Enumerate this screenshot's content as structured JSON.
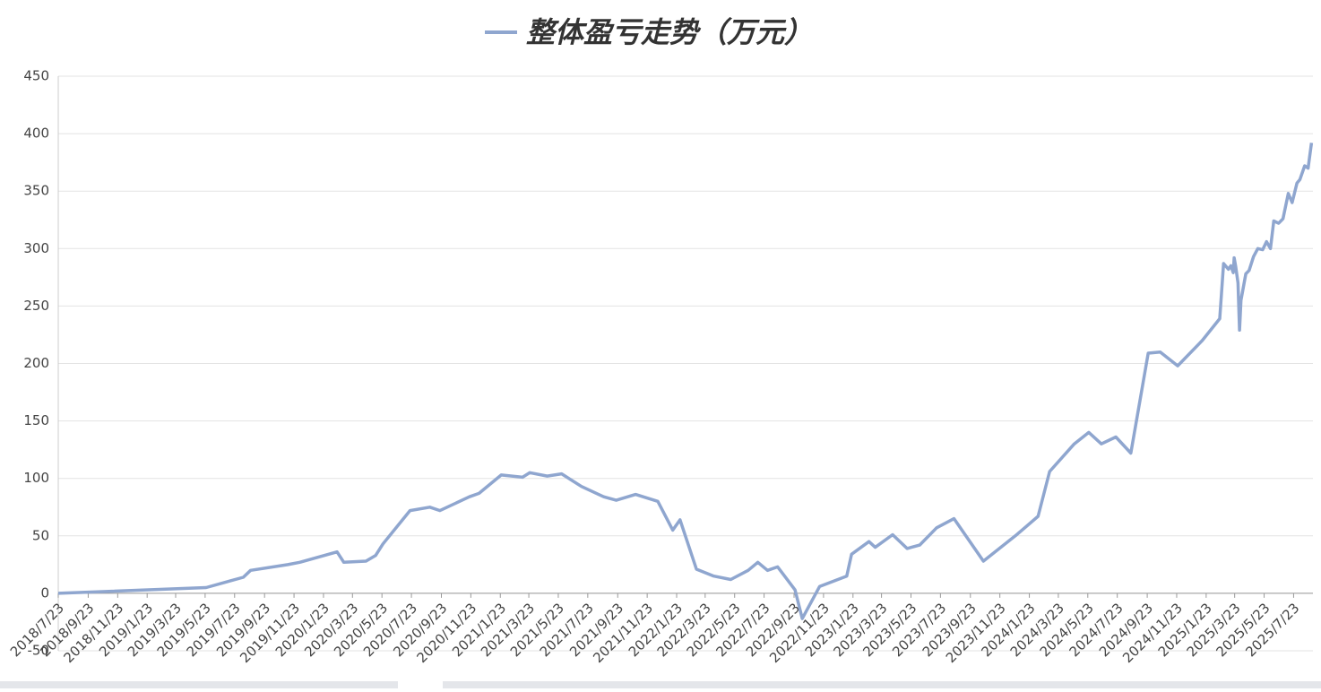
{
  "chart_data": {
    "type": "line",
    "title": "整体盈亏走势（万元）",
    "series": [
      {
        "name": "整体盈亏走势（万元）",
        "color": "#8fa6cf",
        "x": [
          "2018/7/23",
          "2019/5/25",
          "2019/8/10",
          "2019/8/25",
          "2019/11/10",
          "2019/12/5",
          "2020/2/20",
          "2020/3/5",
          "2020/4/20",
          "2020/5/10",
          "2020/5/25",
          "2020/7/20",
          "2020/8/30",
          "2020/9/20",
          "2020/11/20",
          "2020/12/10",
          "2021/1/25",
          "2021/3/10",
          "2021/3/25",
          "2021/4/30",
          "2021/5/30",
          "2021/7/10",
          "2021/8/25",
          "2021/9/20",
          "2021/10/30",
          "2021/12/15",
          "2022/1/15",
          "2022/1/30",
          "2022/3/5",
          "2022/4/10",
          "2022/5/15",
          "2022/6/20",
          "2022/7/10",
          "2022/7/30",
          "2022/8/20",
          "2022/9/25",
          "2022/10/10",
          "2022/11/15",
          "2023/1/10",
          "2023/1/20",
          "2023/2/25",
          "2023/3/10",
          "2023/4/15",
          "2023/5/15",
          "2023/6/10",
          "2023/7/15",
          "2023/8/20",
          "2023/10/20",
          "2023/12/25",
          "2024/2/10",
          "2024/3/5",
          "2024/4/25",
          "2024/5/25",
          "2024/6/20",
          "2024/7/20",
          "2024/8/20",
          "2024/9/25",
          "2024/10/20",
          "2024/11/25",
          "2025/1/15",
          "2025/2/20",
          "2025/2/28",
          "2025/3/10",
          "2025/3/15",
          "2025/3/20",
          "2025/3/22",
          "2025/3/25",
          "2025/3/30",
          "2025/4/2",
          "2025/4/5",
          "2025/4/15",
          "2025/4/22",
          "2025/5/1",
          "2025/5/10",
          "2025/5/20",
          "2025/5/28",
          "2025/6/5",
          "2025/6/12",
          "2025/6/22",
          "2025/7/1",
          "2025/7/12",
          "2025/7/20",
          "2025/7/30",
          "2025/8/5",
          "2025/8/15",
          "2025/8/22",
          "2025/8/29"
        ],
        "values": [
          0,
          5,
          14,
          20,
          25,
          27,
          36,
          27,
          28,
          33,
          43,
          72,
          75,
          72,
          84,
          87,
          103,
          101,
          105,
          102,
          104,
          93,
          84,
          81,
          86,
          80,
          55,
          64,
          21,
          15,
          12,
          20,
          27,
          20,
          23,
          3,
          -22,
          6,
          15,
          34,
          45,
          40,
          51,
          39,
          42,
          57,
          65,
          28,
          50,
          67,
          106,
          130,
          140,
          130,
          136,
          122,
          209,
          210,
          198,
          220,
          239,
          287,
          282,
          285,
          279,
          292,
          285,
          270,
          229,
          255,
          278,
          281,
          293,
          300,
          299,
          306,
          300,
          324,
          322,
          326,
          348,
          340,
          357,
          360,
          372,
          370,
          392
        ]
      }
    ],
    "xlim": [
      "2018/7/23",
      "2025/9/1"
    ],
    "xticks": [
      "2018/7/23",
      "2018/9/23",
      "2018/11/23",
      "2019/1/23",
      "2019/3/23",
      "2019/5/23",
      "2019/7/23",
      "2019/9/23",
      "2019/11/23",
      "2020/1/23",
      "2020/3/23",
      "2020/5/23",
      "2020/7/23",
      "2020/9/23",
      "2020/11/23",
      "2021/1/23",
      "2021/3/23",
      "2021/5/23",
      "2021/7/23",
      "2021/9/23",
      "2021/11/23",
      "2022/1/23",
      "2022/3/23",
      "2022/5/23",
      "2022/7/23",
      "2022/9/23",
      "2022/11/23",
      "2023/1/23",
      "2023/3/23",
      "2023/5/23",
      "2023/7/23",
      "2023/9/23",
      "2023/11/23",
      "2024/1/23",
      "2024/3/23",
      "2024/5/23",
      "2024/7/23",
      "2024/9/23",
      "2024/11/23",
      "2025/1/23",
      "2025/3/23",
      "2025/5/23",
      "2025/7/23"
    ],
    "ylim": [
      -50,
      450
    ],
    "yticks": [
      -50,
      0,
      50,
      100,
      150,
      200,
      250,
      300,
      350,
      400,
      450
    ],
    "grid": true
  }
}
